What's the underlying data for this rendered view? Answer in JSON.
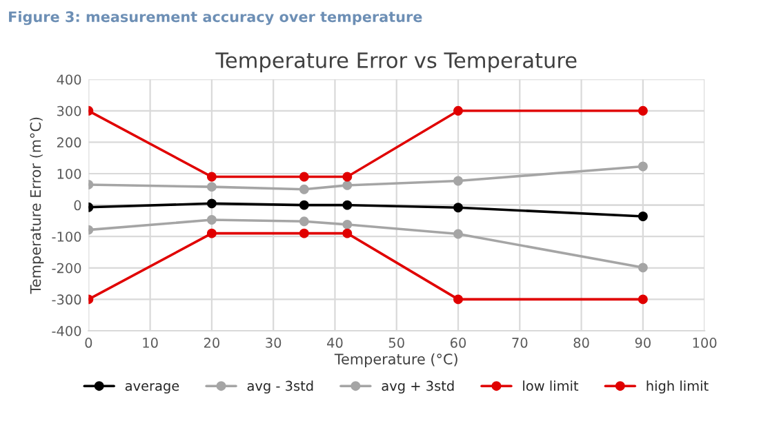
{
  "chart_data": {
    "type": "line",
    "title": "Temperature Error vs Temperature",
    "annotations": [
      "Figure 3: measurement accuracy over temperature"
    ],
    "xlabel": "Temperature (°C)",
    "ylabel": "Temperature Error (m°C)",
    "x": [
      0,
      20,
      35,
      42,
      60,
      90
    ],
    "series": [
      {
        "name": "average",
        "color": "#000000",
        "values": [
          -7,
          5,
          0,
          0,
          -8,
          -36
        ]
      },
      {
        "name": "avg - 3std",
        "color": "#a5a5a5",
        "values": [
          -79,
          -47,
          -52,
          -62,
          -92,
          -199
        ]
      },
      {
        "name": "avg + 3std",
        "color": "#a5a5a5",
        "values": [
          65,
          58,
          50,
          63,
          77,
          123
        ]
      },
      {
        "name": "low limit",
        "color": "#e00000",
        "values": [
          -300,
          -90,
          -90,
          -90,
          -300,
          -300
        ]
      },
      {
        "name": "high limit",
        "color": "#e00000",
        "values": [
          300,
          90,
          90,
          90,
          300,
          300
        ]
      }
    ],
    "xlim": [
      0,
      100
    ],
    "xticks": [
      0,
      10,
      20,
      30,
      40,
      50,
      60,
      70,
      80,
      90,
      100
    ],
    "ylim": [
      -400,
      400
    ],
    "yticks": [
      -400,
      -300,
      -200,
      -100,
      0,
      100,
      200,
      300,
      400
    ],
    "grid": true,
    "legend": "bottom",
    "marker": "circle",
    "line_style": "solid"
  }
}
